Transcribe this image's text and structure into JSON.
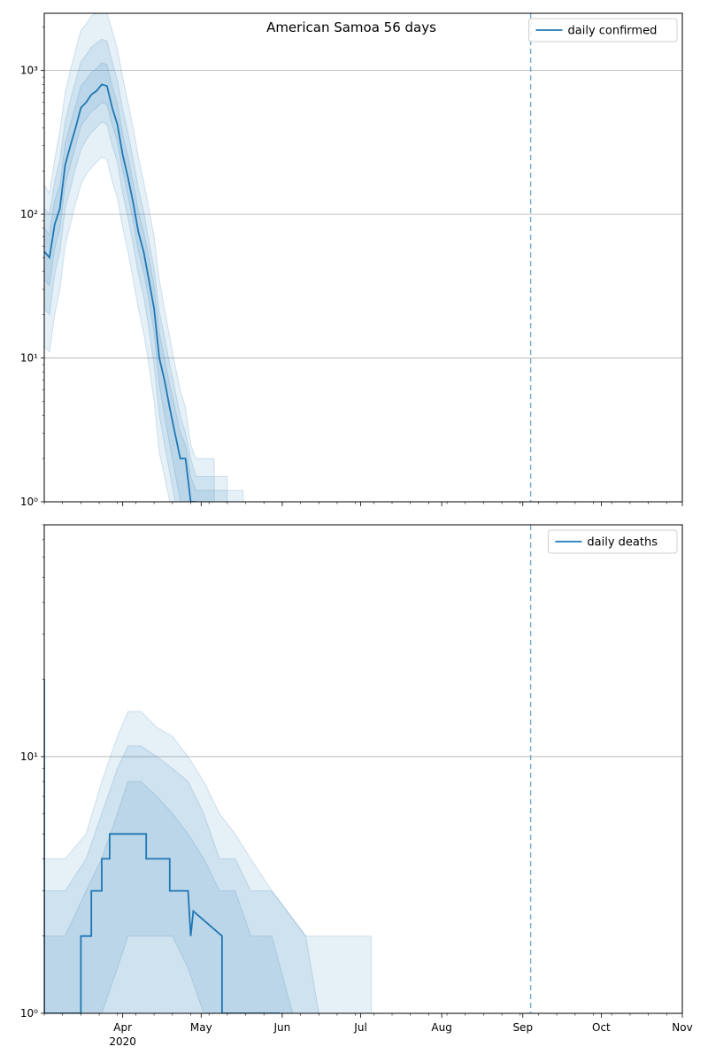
{
  "figure": {
    "title": "American Samoa 56 days",
    "colors": {
      "line": "#1f77b4",
      "band": "#1f77b4",
      "grid": "#b0b0b0",
      "vline": "#1f77b4"
    }
  },
  "chart_data": [
    {
      "type": "line",
      "scale": "log",
      "xlim": [
        "2020-03-02",
        "2020-11-01"
      ],
      "ylim": [
        1,
        2500
      ],
      "grid": "horizontal",
      "legend_position": "top-right",
      "x_ticks": [
        {
          "date": "2020-04-01",
          "label": "Apr",
          "sublabel": ""
        },
        {
          "date": "2020-05-01",
          "label": "May",
          "sublabel": ""
        },
        {
          "date": "2020-06-01",
          "label": "Jun",
          "sublabel": ""
        },
        {
          "date": "2020-07-01",
          "label": "Jul",
          "sublabel": ""
        },
        {
          "date": "2020-08-01",
          "label": "Aug",
          "sublabel": ""
        },
        {
          "date": "2020-09-01",
          "label": "Sep",
          "sublabel": ""
        },
        {
          "date": "2020-10-01",
          "label": "Oct",
          "sublabel": ""
        },
        {
          "date": "2020-11-01",
          "label": "Nov",
          "sublabel": ""
        }
      ],
      "show_x_labels": false,
      "y_ticks": [
        {
          "value": 1,
          "label": "10⁰"
        },
        {
          "value": 10,
          "label": "10¹"
        },
        {
          "value": 100,
          "label": "10²"
        },
        {
          "value": 1000,
          "label": "10³"
        }
      ],
      "vline": "2020-09-04",
      "series": [
        {
          "name": "daily confirmed",
          "x": [
            "2020-03-02",
            "2020-03-04",
            "2020-03-06",
            "2020-03-08",
            "2020-03-10",
            "2020-03-12",
            "2020-03-14",
            "2020-03-16",
            "2020-03-18",
            "2020-03-20",
            "2020-03-22",
            "2020-03-24",
            "2020-03-26",
            "2020-03-28",
            "2020-03-30",
            "2020-04-01",
            "2020-04-03",
            "2020-04-05",
            "2020-04-07",
            "2020-04-09",
            "2020-04-11",
            "2020-04-13",
            "2020-04-15",
            "2020-04-17",
            "2020-04-19",
            "2020-04-21",
            "2020-04-23",
            "2020-04-25",
            "2020-04-27",
            "2020-04-29"
          ],
          "values": [
            55,
            50,
            85,
            110,
            220,
            300,
            400,
            550,
            600,
            680,
            720,
            800,
            780,
            550,
            420,
            260,
            180,
            120,
            75,
            55,
            35,
            22,
            10,
            7,
            4.5,
            3,
            2,
            2,
            1,
            1
          ]
        }
      ],
      "bands": [
        {
          "lower": [
            12,
            11,
            20,
            30,
            60,
            85,
            120,
            160,
            190,
            210,
            230,
            250,
            240,
            170,
            130,
            80,
            55,
            35,
            22,
            15,
            9,
            5,
            2.2,
            1.5,
            1,
            1,
            1,
            1,
            1,
            1
          ],
          "upper": [
            160,
            140,
            240,
            380,
            700,
            1000,
            1400,
            1900,
            2100,
            2400,
            2500,
            2500,
            2500,
            1900,
            1400,
            900,
            600,
            400,
            250,
            170,
            110,
            70,
            35,
            22,
            14,
            9,
            6,
            4.5,
            2.5,
            2
          ]
        },
        {
          "lower": [
            22,
            20,
            38,
            55,
            110,
            150,
            210,
            280,
            330,
            370,
            400,
            440,
            420,
            300,
            230,
            140,
            95,
            62,
            38,
            27,
            16,
            9,
            4,
            2.5,
            1.6,
            1,
            1,
            1,
            1,
            1
          ],
          "upper": [
            110,
            100,
            170,
            240,
            440,
            620,
            850,
            1150,
            1280,
            1450,
            1550,
            1650,
            1600,
            1150,
            850,
            540,
            370,
            240,
            150,
            105,
            65,
            42,
            21,
            14,
            9,
            6,
            4,
            3,
            2,
            1.5
          ]
        },
        {
          "lower": [
            35,
            32,
            58,
            80,
            160,
            220,
            300,
            410,
            460,
            520,
            550,
            600,
            580,
            420,
            320,
            200,
            135,
            90,
            55,
            40,
            25,
            15,
            6.5,
            4,
            2.5,
            1.6,
            1,
            1,
            1,
            1
          ],
          "upper": [
            80,
            72,
            125,
            160,
            310,
            420,
            570,
            780,
            860,
            970,
            1030,
            1130,
            1100,
            780,
            580,
            360,
            250,
            165,
            105,
            76,
            50,
            32,
            15,
            10,
            6.5,
            4.5,
            3,
            2.5,
            1.5,
            1.2
          ]
        }
      ],
      "band_x_end_extra": [
        "2020-05-06",
        "2020-05-11",
        "2020-05-17"
      ]
    },
    {
      "type": "line",
      "scale": "log",
      "xlim": [
        "2020-03-02",
        "2020-11-01"
      ],
      "ylim": [
        1,
        80
      ],
      "grid": "horizontal",
      "legend_position": "top-right",
      "x_ticks": [
        {
          "date": "2020-04-01",
          "label": "Apr",
          "sublabel": "2020"
        },
        {
          "date": "2020-05-01",
          "label": "May",
          "sublabel": ""
        },
        {
          "date": "2020-06-01",
          "label": "Jun",
          "sublabel": ""
        },
        {
          "date": "2020-07-01",
          "label": "Jul",
          "sublabel": ""
        },
        {
          "date": "2020-08-01",
          "label": "Aug",
          "sublabel": ""
        },
        {
          "date": "2020-09-01",
          "label": "Sep",
          "sublabel": ""
        },
        {
          "date": "2020-10-01",
          "label": "Oct",
          "sublabel": ""
        },
        {
          "date": "2020-11-01",
          "label": "Nov",
          "sublabel": ""
        }
      ],
      "show_x_labels": true,
      "y_ticks": [
        {
          "value": 1,
          "label": "10⁰"
        },
        {
          "value": 10,
          "label": "10¹"
        }
      ],
      "vline": "2020-09-04",
      "series": [
        {
          "name": "daily deaths",
          "x": [
            "2020-03-02",
            "2020-03-02",
            "2020-03-16",
            "2020-03-16",
            "2020-03-20",
            "2020-03-20",
            "2020-03-24",
            "2020-03-24",
            "2020-03-27",
            "2020-03-27",
            "2020-04-10",
            "2020-04-10",
            "2020-04-19",
            "2020-04-19",
            "2020-04-26",
            "2020-04-27",
            "2020-04-28",
            "2020-05-09",
            "2020-05-09",
            "2020-05-31"
          ],
          "values": [
            20,
            1,
            1,
            2,
            2,
            3,
            3,
            4,
            4,
            5,
            5,
            4,
            4,
            3,
            3,
            2,
            2.5,
            2,
            1,
            1
          ]
        }
      ],
      "bands": [
        {
          "x": [
            "2020-03-02",
            "2020-03-10",
            "2020-03-18",
            "2020-03-24",
            "2020-03-30",
            "2020-04-03",
            "2020-04-08",
            "2020-04-14",
            "2020-04-20",
            "2020-04-26",
            "2020-05-02",
            "2020-05-08",
            "2020-05-14",
            "2020-05-20",
            "2020-05-28",
            "2020-06-10",
            "2020-07-05"
          ],
          "lower": [
            1,
            1,
            1,
            1,
            1,
            1,
            1,
            1,
            1,
            1,
            1,
            1,
            1,
            1,
            1,
            1,
            1
          ],
          "upper": [
            4,
            4,
            5,
            8,
            12,
            15,
            15,
            13,
            12,
            10,
            8,
            6,
            5,
            4,
            3,
            2,
            2
          ]
        },
        {
          "x": [
            "2020-03-02",
            "2020-03-10",
            "2020-03-18",
            "2020-03-24",
            "2020-03-30",
            "2020-04-03",
            "2020-04-08",
            "2020-04-14",
            "2020-04-20",
            "2020-04-26",
            "2020-05-02",
            "2020-05-08",
            "2020-05-14",
            "2020-05-20",
            "2020-05-28",
            "2020-06-10",
            "2020-06-15"
          ],
          "lower": [
            1,
            1,
            1,
            1,
            1,
            1,
            1,
            1,
            1,
            1,
            1,
            1,
            1,
            1,
            1,
            1,
            1
          ],
          "upper": [
            3,
            3,
            4,
            6,
            9,
            11,
            11,
            10,
            9,
            8,
            6,
            4,
            4,
            3,
            3,
            2,
            1
          ]
        },
        {
          "x": [
            "2020-03-02",
            "2020-03-10",
            "2020-03-18",
            "2020-03-24",
            "2020-03-30",
            "2020-04-03",
            "2020-04-08",
            "2020-04-14",
            "2020-04-20",
            "2020-04-26",
            "2020-05-02",
            "2020-05-08",
            "2020-05-14",
            "2020-05-20",
            "2020-05-28",
            "2020-06-05"
          ],
          "lower": [
            1,
            1,
            1,
            1,
            1.5,
            2,
            2,
            2,
            2,
            1.5,
            1,
            1,
            1,
            1,
            1,
            1
          ],
          "upper": [
            2,
            2,
            3,
            4,
            6,
            8,
            8,
            7,
            6,
            5,
            4,
            3,
            3,
            2,
            2,
            1
          ]
        }
      ]
    }
  ]
}
